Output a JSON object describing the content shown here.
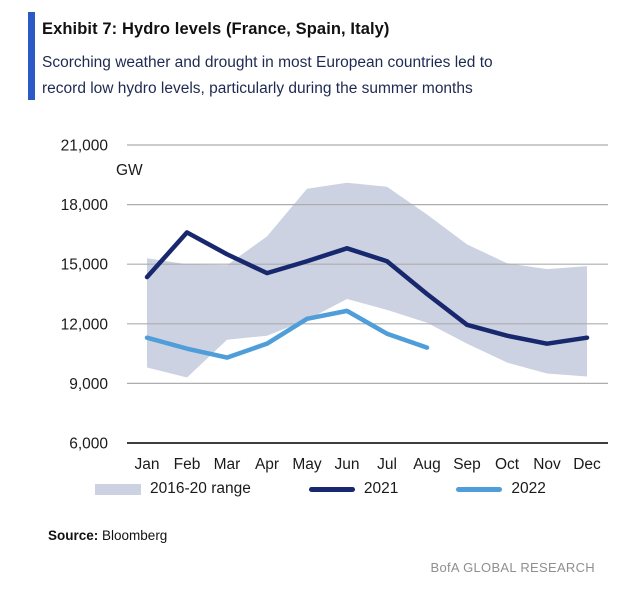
{
  "header": {
    "title": "Exhibit 7: Hydro levels (France, Spain, Italy)",
    "subtitle_line1": "Scorching weather and drought in most European countries led to",
    "subtitle_line2": "record low hydro levels, particularly during the summer months",
    "accent_color": "#2b5ac7"
  },
  "chart_data": {
    "type": "line",
    "title": "Exhibit 7: Hydro levels (France, Spain, Italy)",
    "ylabel": "GW",
    "xlabel": "",
    "grid": true,
    "legend_position": "bottom",
    "ylim": [
      6000,
      21000
    ],
    "y_ticks": [
      {
        "value": 21000,
        "label": "21,000"
      },
      {
        "value": 18000,
        "label": "18,000"
      },
      {
        "value": 15000,
        "label": "15,000"
      },
      {
        "value": 12000,
        "label": "12,000"
      },
      {
        "value": 9000,
        "label": "9,000"
      },
      {
        "value": 6000,
        "label": "6,000"
      }
    ],
    "x_categories": [
      "Jan",
      "Feb",
      "Mar",
      "Apr",
      "May",
      "Jun",
      "Jul",
      "Aug",
      "Sep",
      "Oct",
      "Nov",
      "Dec"
    ],
    "series": [
      {
        "name": "2016-20 range",
        "type": "range",
        "color": "#ccd2e1",
        "upper": [
          15300,
          15000,
          14950,
          16400,
          18800,
          19100,
          18900,
          17500,
          16000,
          15050,
          14750,
          14900
        ],
        "lower": [
          9800,
          9300,
          11200,
          11400,
          12200,
          13250,
          12700,
          12050,
          11000,
          10050,
          9500,
          9350
        ]
      },
      {
        "name": "2021",
        "type": "line",
        "color": "#17286e",
        "values": [
          14350,
          16600,
          15500,
          14550,
          15150,
          15800,
          15150,
          13500,
          11950,
          11400,
          11000,
          11300
        ]
      },
      {
        "name": "2022",
        "type": "line",
        "color": "#4f9ed9",
        "values": [
          11300,
          10750,
          10300,
          11000,
          12250,
          12650,
          11500,
          10800
        ]
      }
    ],
    "axis_color": "#3d3d3d",
    "gridline_color": "#adadad"
  },
  "legend": {
    "range_label": "2016-20 range",
    "s2021_label": "2021",
    "s2022_label": "2022"
  },
  "footer": {
    "source_label": "Source:",
    "source_value": "Bloomberg",
    "brand": "BofA GLOBAL RESEARCH"
  }
}
